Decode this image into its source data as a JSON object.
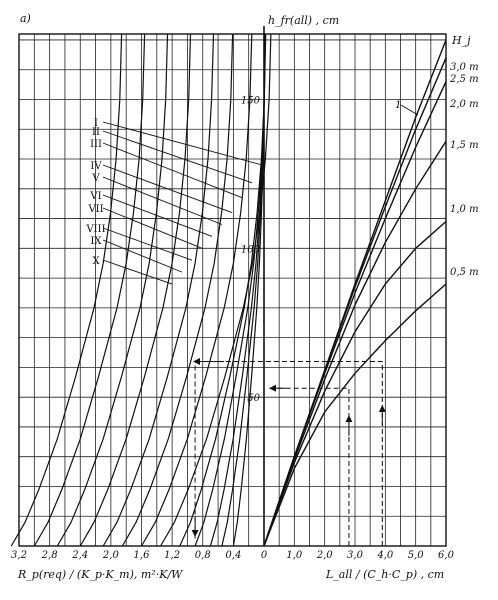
{
  "chart_data": {
    "type": "line",
    "panel_label": "a)",
    "y_axis": {
      "label": "h_fr(all) , cm",
      "ticks": [
        50,
        100,
        150
      ],
      "ylim": [
        0,
        172
      ]
    },
    "left_panel": {
      "xlabel": "R_p(req) / (K_p·K_m), m²·K/W",
      "xlim": [
        0,
        3.2
      ],
      "ticks": [
        "3,2",
        "2,8",
        "2,4",
        "2,0",
        "1,6",
        "1,2",
        "0,8",
        "0,4",
        "0"
      ],
      "tick_values": [
        3.2,
        2.8,
        2.4,
        2.0,
        1.6,
        1.2,
        0.8,
        0.4,
        0
      ],
      "series_labels": [
        "I",
        "II",
        "III",
        "IV",
        "V",
        "VI",
        "VII",
        "VIII",
        "IX",
        "X"
      ],
      "curve_base_x": [
        0.4,
        0.55,
        0.7,
        0.9,
        1.1,
        1.35,
        1.6,
        1.85,
        2.1,
        2.4,
        2.7,
        3.0,
        3.3
      ],
      "curve_shape_y": [
        [
          0,
          0
        ],
        [
          0.15,
          8
        ],
        [
          0.3,
          19
        ],
        [
          0.5,
          36
        ],
        [
          0.7,
          57
        ],
        [
          0.9,
          80
        ],
        [
          1.0,
          95
        ],
        [
          1.08,
          112
        ],
        [
          1.14,
          130
        ],
        [
          1.18,
          150
        ],
        [
          1.2,
          172
        ]
      ],
      "leader_targets_y": [
        128,
        122,
        117,
        112,
        108,
        104,
        100,
        96,
        92,
        88
      ]
    },
    "right_panel": {
      "xlabel": "L_all / (C_h·C_p) , cm",
      "xlim": [
        0,
        6.0
      ],
      "ticks": [
        "0",
        "1,0",
        "2,0",
        "3,0",
        "4,0",
        "5,0",
        "6,0"
      ],
      "tick_values": [
        0,
        1.0,
        2.0,
        3.0,
        4.0,
        5.0,
        6.0
      ],
      "legend_title": "H_j",
      "curve_marker": "1",
      "series": [
        {
          "name": "3,0 m",
          "points": [
            [
              0,
              0
            ],
            [
              1,
              30
            ],
            [
              2,
              59
            ],
            [
              3,
              88
            ],
            [
              4,
              116
            ],
            [
              5,
              144
            ],
            [
              6,
              170
            ]
          ]
        },
        {
          "name": "2,5 m",
          "points": [
            [
              0,
              0
            ],
            [
              1,
              30
            ],
            [
              2,
              59
            ],
            [
              3,
              87
            ],
            [
              4,
              114
            ],
            [
              5,
              140
            ],
            [
              6,
              164
            ]
          ]
        },
        {
          "name": "2,0 m",
          "points": [
            [
              0,
              0
            ],
            [
              1,
              30
            ],
            [
              2,
              58
            ],
            [
              3,
              85
            ],
            [
              4,
              110
            ],
            [
              5,
              134
            ],
            [
              6,
              156
            ]
          ]
        },
        {
          "name": "1,5 m",
          "points": [
            [
              0,
              0
            ],
            [
              1,
              29
            ],
            [
              2,
              56
            ],
            [
              3,
              81
            ],
            [
              4,
              102
            ],
            [
              5,
              120
            ],
            [
              6,
              136
            ]
          ]
        },
        {
          "name": "1,0 m",
          "points": [
            [
              0,
              0
            ],
            [
              1,
              28
            ],
            [
              2,
              52
            ],
            [
              3,
              72
            ],
            [
              4,
              88
            ],
            [
              5,
              100
            ],
            [
              6,
              109
            ]
          ]
        },
        {
          "name": "0,5 m",
          "points": [
            [
              0,
              0
            ],
            [
              1,
              26
            ],
            [
              2,
              45
            ],
            [
              3,
              58
            ],
            [
              4,
              69
            ],
            [
              5,
              79
            ],
            [
              6,
              88
            ]
          ]
        }
      ]
    },
    "example_paths": [
      {
        "from": [
          3.9,
          0
        ],
        "to_y": 62,
        "to_left_x": 0.9
      },
      {
        "from": [
          2.8,
          0
        ],
        "to_y": 53
      }
    ],
    "grid": true
  }
}
